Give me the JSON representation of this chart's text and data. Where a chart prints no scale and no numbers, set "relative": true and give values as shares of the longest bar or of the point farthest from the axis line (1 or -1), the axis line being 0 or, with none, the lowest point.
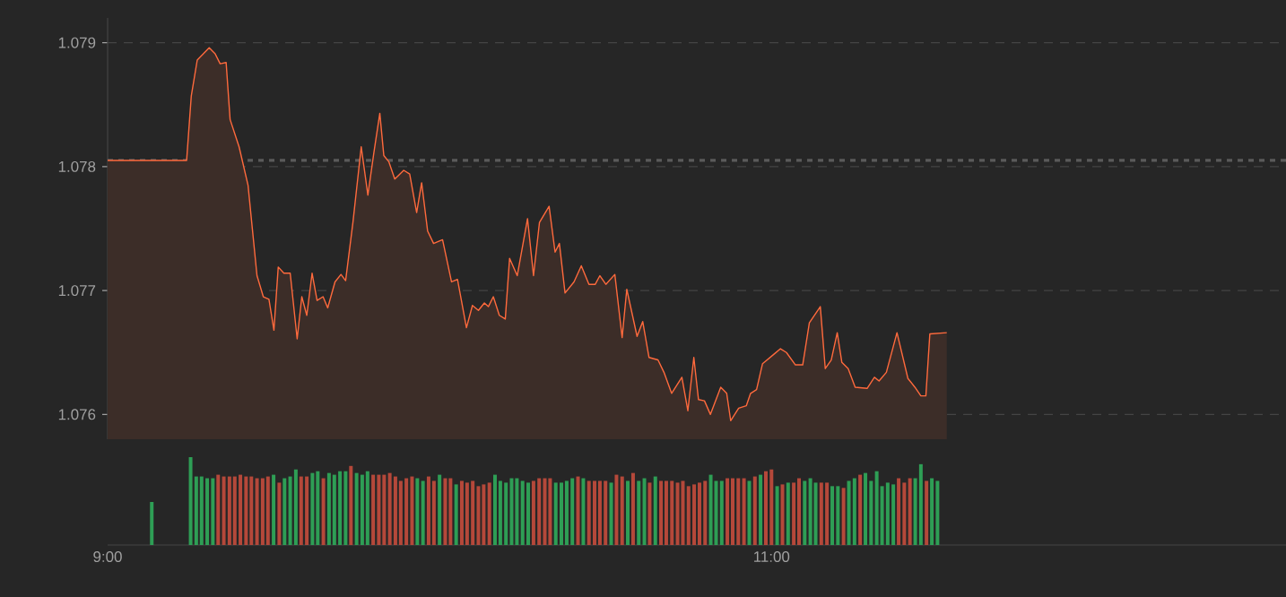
{
  "chart_data": [
    {
      "type": "area",
      "color": "#ff6a3d",
      "x": [
        9.0,
        9.238,
        9.252,
        9.27,
        9.306,
        9.324,
        9.339,
        9.357,
        9.369,
        9.396,
        9.423,
        9.45,
        9.469,
        9.486,
        9.501,
        9.514,
        9.531,
        9.55,
        9.571,
        9.585,
        9.6,
        9.616,
        9.631,
        9.649,
        9.663,
        9.685,
        9.703,
        9.717,
        9.739,
        9.764,
        9.784,
        9.802,
        9.82,
        9.832,
        9.847,
        9.865,
        9.892,
        9.91,
        9.931,
        9.946,
        9.964,
        9.982,
        10.009,
        10.036,
        10.054,
        10.081,
        10.099,
        10.117,
        10.135,
        10.147,
        10.162,
        10.18,
        10.198,
        10.211,
        10.234,
        10.265,
        10.283,
        10.301,
        10.33,
        10.348,
        10.361,
        10.378,
        10.405,
        10.427,
        10.45,
        10.469,
        10.483,
        10.501,
        10.528,
        10.55,
        10.564,
        10.595,
        10.612,
        10.631,
        10.658,
        10.676,
        10.699,
        10.73,
        10.748,
        10.766,
        10.78,
        10.798,
        10.816,
        10.847,
        10.865,
        10.877,
        10.901,
        10.924,
        10.937,
        10.955,
        10.973,
        11.009,
        11.027,
        11.045,
        11.072,
        11.094,
        11.114,
        11.147,
        11.162,
        11.18,
        11.198,
        11.212,
        11.231,
        11.252,
        11.288,
        11.31,
        11.324,
        11.346,
        11.378,
        11.411,
        11.432,
        11.45,
        11.465,
        11.477,
        11.528
      ],
      "values": [
        1.07805,
        1.07805,
        1.07857,
        1.07886,
        1.07896,
        1.07891,
        1.07883,
        1.07884,
        1.07838,
        1.07816,
        1.07785,
        1.07712,
        1.07695,
        1.07693,
        1.07668,
        1.07719,
        1.07714,
        1.07714,
        1.07661,
        1.07695,
        1.0768,
        1.07714,
        1.07692,
        1.07695,
        1.07686,
        1.07707,
        1.07713,
        1.07708,
        1.07755,
        1.07816,
        1.07777,
        1.07811,
        1.07843,
        1.07809,
        1.07804,
        1.0779,
        1.07797,
        1.07794,
        1.07763,
        1.07787,
        1.07748,
        1.07738,
        1.07741,
        1.07707,
        1.07709,
        1.0767,
        1.07688,
        1.07684,
        1.0769,
        1.07687,
        1.07695,
        1.0768,
        1.07677,
        1.07726,
        1.07712,
        1.07758,
        1.07712,
        1.07755,
        1.07768,
        1.07731,
        1.07738,
        1.07698,
        1.07707,
        1.0772,
        1.07705,
        1.07705,
        1.07712,
        1.07705,
        1.07713,
        1.07662,
        1.07701,
        1.07663,
        1.07675,
        1.07646,
        1.07644,
        1.07634,
        1.07617,
        1.0763,
        1.07603,
        1.07646,
        1.07612,
        1.07611,
        1.076,
        1.07622,
        1.07617,
        1.07595,
        1.07605,
        1.07607,
        1.07617,
        1.0762,
        1.07641,
        1.07649,
        1.07653,
        1.0765,
        1.0764,
        1.0764,
        1.07674,
        1.07687,
        1.07637,
        1.07644,
        1.07666,
        1.07642,
        1.07637,
        1.07622,
        1.07621,
        1.0763,
        1.07627,
        1.07634,
        1.07666,
        1.07629,
        1.07622,
        1.07615,
        1.07615,
        1.07665,
        1.07666
      ],
      "xlim": [
        9,
        12.55
      ],
      "ylim": [
        1.0758,
        1.0792
      ],
      "yticks": [
        {
          "value": 1.076,
          "label": "1.076"
        },
        {
          "value": 1.077,
          "label": "1.077"
        },
        {
          "value": 1.078,
          "label": "1.078"
        },
        {
          "value": 1.079,
          "label": "1.079"
        }
      ],
      "grid": "y",
      "tick_labels": "y",
      "ref_lines": [
        {
          "axis": "y",
          "value": 1.07805,
          "line_style": "dotted"
        }
      ]
    },
    {
      "type": "bar",
      "relative": true,
      "tick_labels": "x",
      "xlim": [
        9,
        12.55
      ],
      "xticks": [
        {
          "value": 9,
          "label": "9:00"
        },
        {
          "value": 11,
          "label": "11:00"
        }
      ],
      "x": [
        9.133,
        9.25,
        9.267,
        9.283,
        9.3,
        9.317,
        9.333,
        9.35,
        9.367,
        9.383,
        9.4,
        9.417,
        9.433,
        9.45,
        9.467,
        9.483,
        9.5,
        9.517,
        9.533,
        9.55,
        9.567,
        9.583,
        9.6,
        9.617,
        9.633,
        9.65,
        9.667,
        9.683,
        9.7,
        9.717,
        9.733,
        9.75,
        9.767,
        9.783,
        9.8,
        9.817,
        9.833,
        9.85,
        9.867,
        9.883,
        9.9,
        9.917,
        9.933,
        9.95,
        9.967,
        9.983,
        10.0,
        10.017,
        10.033,
        10.05,
        10.067,
        10.083,
        10.1,
        10.117,
        10.133,
        10.15,
        10.167,
        10.183,
        10.2,
        10.217,
        10.233,
        10.25,
        10.267,
        10.283,
        10.3,
        10.317,
        10.333,
        10.35,
        10.367,
        10.383,
        10.4,
        10.417,
        10.433,
        10.45,
        10.467,
        10.483,
        10.5,
        10.517,
        10.533,
        10.55,
        10.567,
        10.583,
        10.6,
        10.617,
        10.633,
        10.65,
        10.667,
        10.683,
        10.7,
        10.717,
        10.733,
        10.75,
        10.767,
        10.783,
        10.8,
        10.817,
        10.833,
        10.85,
        10.867,
        10.883,
        10.9,
        10.917,
        10.933,
        10.95,
        10.967,
        10.983,
        11.0,
        11.017,
        11.033,
        11.05,
        11.067,
        11.083,
        11.1,
        11.117,
        11.133,
        11.15,
        11.167,
        11.183,
        11.2,
        11.217,
        11.233,
        11.25,
        11.267,
        11.283,
        11.3,
        11.317,
        11.333,
        11.35,
        11.367,
        11.383,
        11.4,
        11.417,
        11.433,
        11.45,
        11.467,
        11.483,
        11.5
      ],
      "values": [
        0.49,
        1.0,
        0.78,
        0.78,
        0.76,
        0.76,
        0.8,
        0.78,
        0.78,
        0.78,
        0.8,
        0.78,
        0.78,
        0.76,
        0.76,
        0.78,
        0.8,
        0.71,
        0.76,
        0.78,
        0.86,
        0.78,
        0.78,
        0.82,
        0.84,
        0.76,
        0.82,
        0.8,
        0.84,
        0.84,
        0.9,
        0.82,
        0.8,
        0.84,
        0.8,
        0.8,
        0.8,
        0.82,
        0.78,
        0.73,
        0.76,
        0.78,
        0.76,
        0.73,
        0.78,
        0.73,
        0.8,
        0.76,
        0.76,
        0.69,
        0.73,
        0.71,
        0.73,
        0.67,
        0.69,
        0.71,
        0.8,
        0.73,
        0.71,
        0.76,
        0.76,
        0.73,
        0.71,
        0.73,
        0.76,
        0.76,
        0.76,
        0.71,
        0.71,
        0.73,
        0.76,
        0.78,
        0.76,
        0.73,
        0.73,
        0.73,
        0.73,
        0.71,
        0.8,
        0.78,
        0.73,
        0.82,
        0.73,
        0.76,
        0.71,
        0.78,
        0.73,
        0.73,
        0.73,
        0.71,
        0.73,
        0.67,
        0.69,
        0.71,
        0.73,
        0.8,
        0.73,
        0.73,
        0.76,
        0.76,
        0.76,
        0.76,
        0.73,
        0.78,
        0.8,
        0.84,
        0.86,
        0.67,
        0.69,
        0.71,
        0.71,
        0.76,
        0.73,
        0.76,
        0.71,
        0.71,
        0.71,
        0.67,
        0.67,
        0.65,
        0.73,
        0.76,
        0.8,
        0.82,
        0.73,
        0.84,
        0.67,
        0.71,
        0.69,
        0.76,
        0.71,
        0.76,
        0.76,
        0.92,
        0.73,
        0.76,
        0.73
      ],
      "colors": [
        "#2e9e55",
        "#2e9e55",
        "#2e9e55",
        "#2e9e55",
        "#2e9e55",
        "#2e9e55",
        "#b5483a",
        "#b5483a",
        "#b5483a",
        "#b5483a",
        "#b5483a",
        "#b5483a",
        "#b5483a",
        "#b5483a",
        "#b5483a",
        "#b5483a",
        "#2e9e55",
        "#b5483a",
        "#2e9e55",
        "#2e9e55",
        "#2e9e55",
        "#b5483a",
        "#b5483a",
        "#2e9e55",
        "#2e9e55",
        "#b5483a",
        "#2e9e55",
        "#2e9e55",
        "#2e9e55",
        "#2e9e55",
        "#b5483a",
        "#2e9e55",
        "#2e9e55",
        "#2e9e55",
        "#b5483a",
        "#b5483a",
        "#b5483a",
        "#b5483a",
        "#b5483a",
        "#b5483a",
        "#b5483a",
        "#b5483a",
        "#2e9e55",
        "#2e9e55",
        "#b5483a",
        "#b5483a",
        "#2e9e55",
        "#b5483a",
        "#b5483a",
        "#2e9e55",
        "#b5483a",
        "#b5483a",
        "#b5483a",
        "#b5483a",
        "#b5483a",
        "#b5483a",
        "#2e9e55",
        "#2e9e55",
        "#2e9e55",
        "#2e9e55",
        "#2e9e55",
        "#2e9e55",
        "#2e9e55",
        "#b5483a",
        "#b5483a",
        "#b5483a",
        "#b5483a",
        "#2e9e55",
        "#2e9e55",
        "#2e9e55",
        "#2e9e55",
        "#b5483a",
        "#2e9e55",
        "#b5483a",
        "#b5483a",
        "#b5483a",
        "#b5483a",
        "#2e9e55",
        "#b5483a",
        "#b5483a",
        "#2e9e55",
        "#b5483a",
        "#2e9e55",
        "#2e9e55",
        "#b5483a",
        "#2e9e55",
        "#b5483a",
        "#b5483a",
        "#b5483a",
        "#b5483a",
        "#b5483a",
        "#b5483a",
        "#b5483a",
        "#b5483a",
        "#b5483a",
        "#2e9e55",
        "#2e9e55",
        "#2e9e55",
        "#b5483a",
        "#b5483a",
        "#b5483a",
        "#b5483a",
        "#2e9e55",
        "#b5483a",
        "#2e9e55",
        "#b5483a",
        "#b5483a",
        "#2e9e55",
        "#b5483a",
        "#2e9e55",
        "#b5483a",
        "#b5483a",
        "#2e9e55",
        "#2e9e55",
        "#2e9e55",
        "#b5483a",
        "#b5483a",
        "#2e9e55",
        "#2e9e55",
        "#b5483a",
        "#2e9e55",
        "#2e9e55",
        "#b5483a",
        "#2e9e55",
        "#2e9e55",
        "#2e9e55",
        "#2e9e55",
        "#2e9e55",
        "#2e9e55",
        "#b5483a",
        "#b5483a",
        "#b5483a",
        "#2e9e55",
        "#2e9e55",
        "#b5483a",
        "#2e9e55",
        "#2e9e55"
      ]
    }
  ]
}
